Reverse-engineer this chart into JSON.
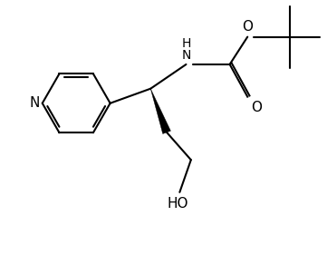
{
  "bg_color": "#ffffff",
  "line_color": "#000000",
  "line_width": 1.5,
  "font_size": 10,
  "figsize": [
    3.61,
    2.81
  ],
  "dpi": 100,
  "xlim": [
    0,
    10
  ],
  "ylim": [
    0,
    7.8
  ]
}
